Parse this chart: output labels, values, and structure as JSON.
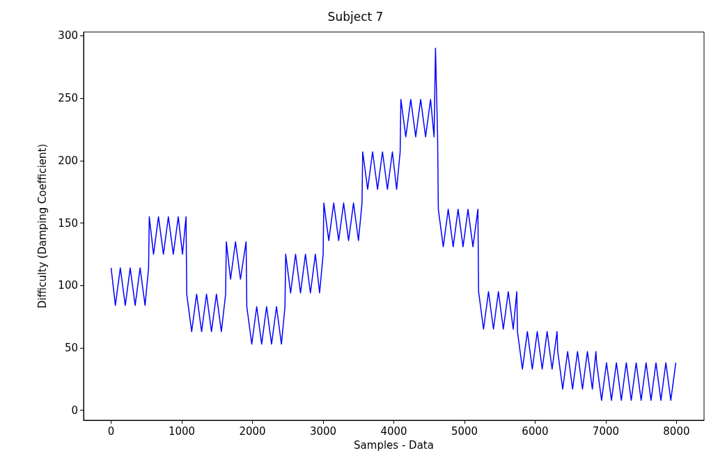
{
  "chart_data": {
    "type": "line",
    "title": "Subject 7",
    "xlabel": "Samples - Data",
    "ylabel": "Difficulty (Damping Coefficient)",
    "xlim": [
      -390,
      8390
    ],
    "ylim": [
      -8,
      303
    ],
    "xticks": [
      0,
      1000,
      2000,
      3000,
      4000,
      5000,
      6000,
      7000,
      8000
    ],
    "yticks": [
      0,
      50,
      100,
      150,
      200,
      250,
      300
    ],
    "grid": false,
    "marker": "none",
    "line_style": "solid",
    "series": [
      {
        "color": "#0000ff",
        "x": [
          0,
          60,
          130,
          200,
          270,
          340,
          410,
          480,
          530,
          540,
          600,
          670,
          740,
          810,
          880,
          950,
          1010,
          1060,
          1070,
          1140,
          1210,
          1280,
          1350,
          1420,
          1490,
          1560,
          1620,
          1630,
          1690,
          1760,
          1830,
          1910,
          1920,
          1990,
          2060,
          2130,
          2200,
          2270,
          2340,
          2410,
          2460,
          2470,
          2540,
          2610,
          2680,
          2750,
          2820,
          2890,
          2950,
          3000,
          3010,
          3080,
          3150,
          3220,
          3290,
          3360,
          3430,
          3500,
          3550,
          3560,
          3630,
          3700,
          3770,
          3840,
          3910,
          3980,
          4040,
          4090,
          4100,
          4170,
          4240,
          4310,
          4380,
          4450,
          4520,
          4570,
          4590,
          4620,
          4630,
          4700,
          4770,
          4840,
          4910,
          4980,
          5050,
          5120,
          5190,
          5200,
          5270,
          5340,
          5410,
          5480,
          5550,
          5620,
          5690,
          5740,
          5750,
          5820,
          5890,
          5960,
          6030,
          6100,
          6170,
          6240,
          6310,
          6320,
          6390,
          6460,
          6530,
          6600,
          6670,
          6740,
          6810,
          6860,
          6870,
          6940,
          7010,
          7080,
          7150,
          7220,
          7290,
          7360,
          7430,
          7500,
          7570,
          7640,
          7710,
          7780,
          7850,
          7920,
          7990
        ],
        "values": [
          114,
          84,
          114,
          84,
          114,
          84,
          114,
          84,
          114,
          155,
          125,
          155,
          125,
          155,
          125,
          155,
          125,
          155,
          93,
          63,
          93,
          63,
          93,
          63,
          93,
          63,
          93,
          135,
          105,
          135,
          105,
          135,
          83,
          53,
          83,
          53,
          83,
          53,
          83,
          53,
          83,
          125,
          94,
          125,
          94,
          125,
          94,
          125,
          94,
          125,
          166,
          136,
          166,
          136,
          166,
          136,
          166,
          136,
          166,
          207,
          177,
          207,
          177,
          207,
          177,
          207,
          177,
          207,
          249,
          219,
          249,
          219,
          249,
          219,
          249,
          219,
          290,
          219,
          161,
          131,
          161,
          131,
          161,
          131,
          161,
          131,
          161,
          95,
          65,
          95,
          65,
          95,
          65,
          95,
          65,
          95,
          63,
          33,
          63,
          33,
          63,
          33,
          63,
          33,
          63,
          47,
          17,
          47,
          17,
          47,
          17,
          47,
          17,
          47,
          38,
          8,
          38,
          8,
          38,
          8,
          38,
          8,
          38,
          8,
          38,
          8,
          38,
          8,
          38,
          8,
          38
        ]
      }
    ]
  }
}
